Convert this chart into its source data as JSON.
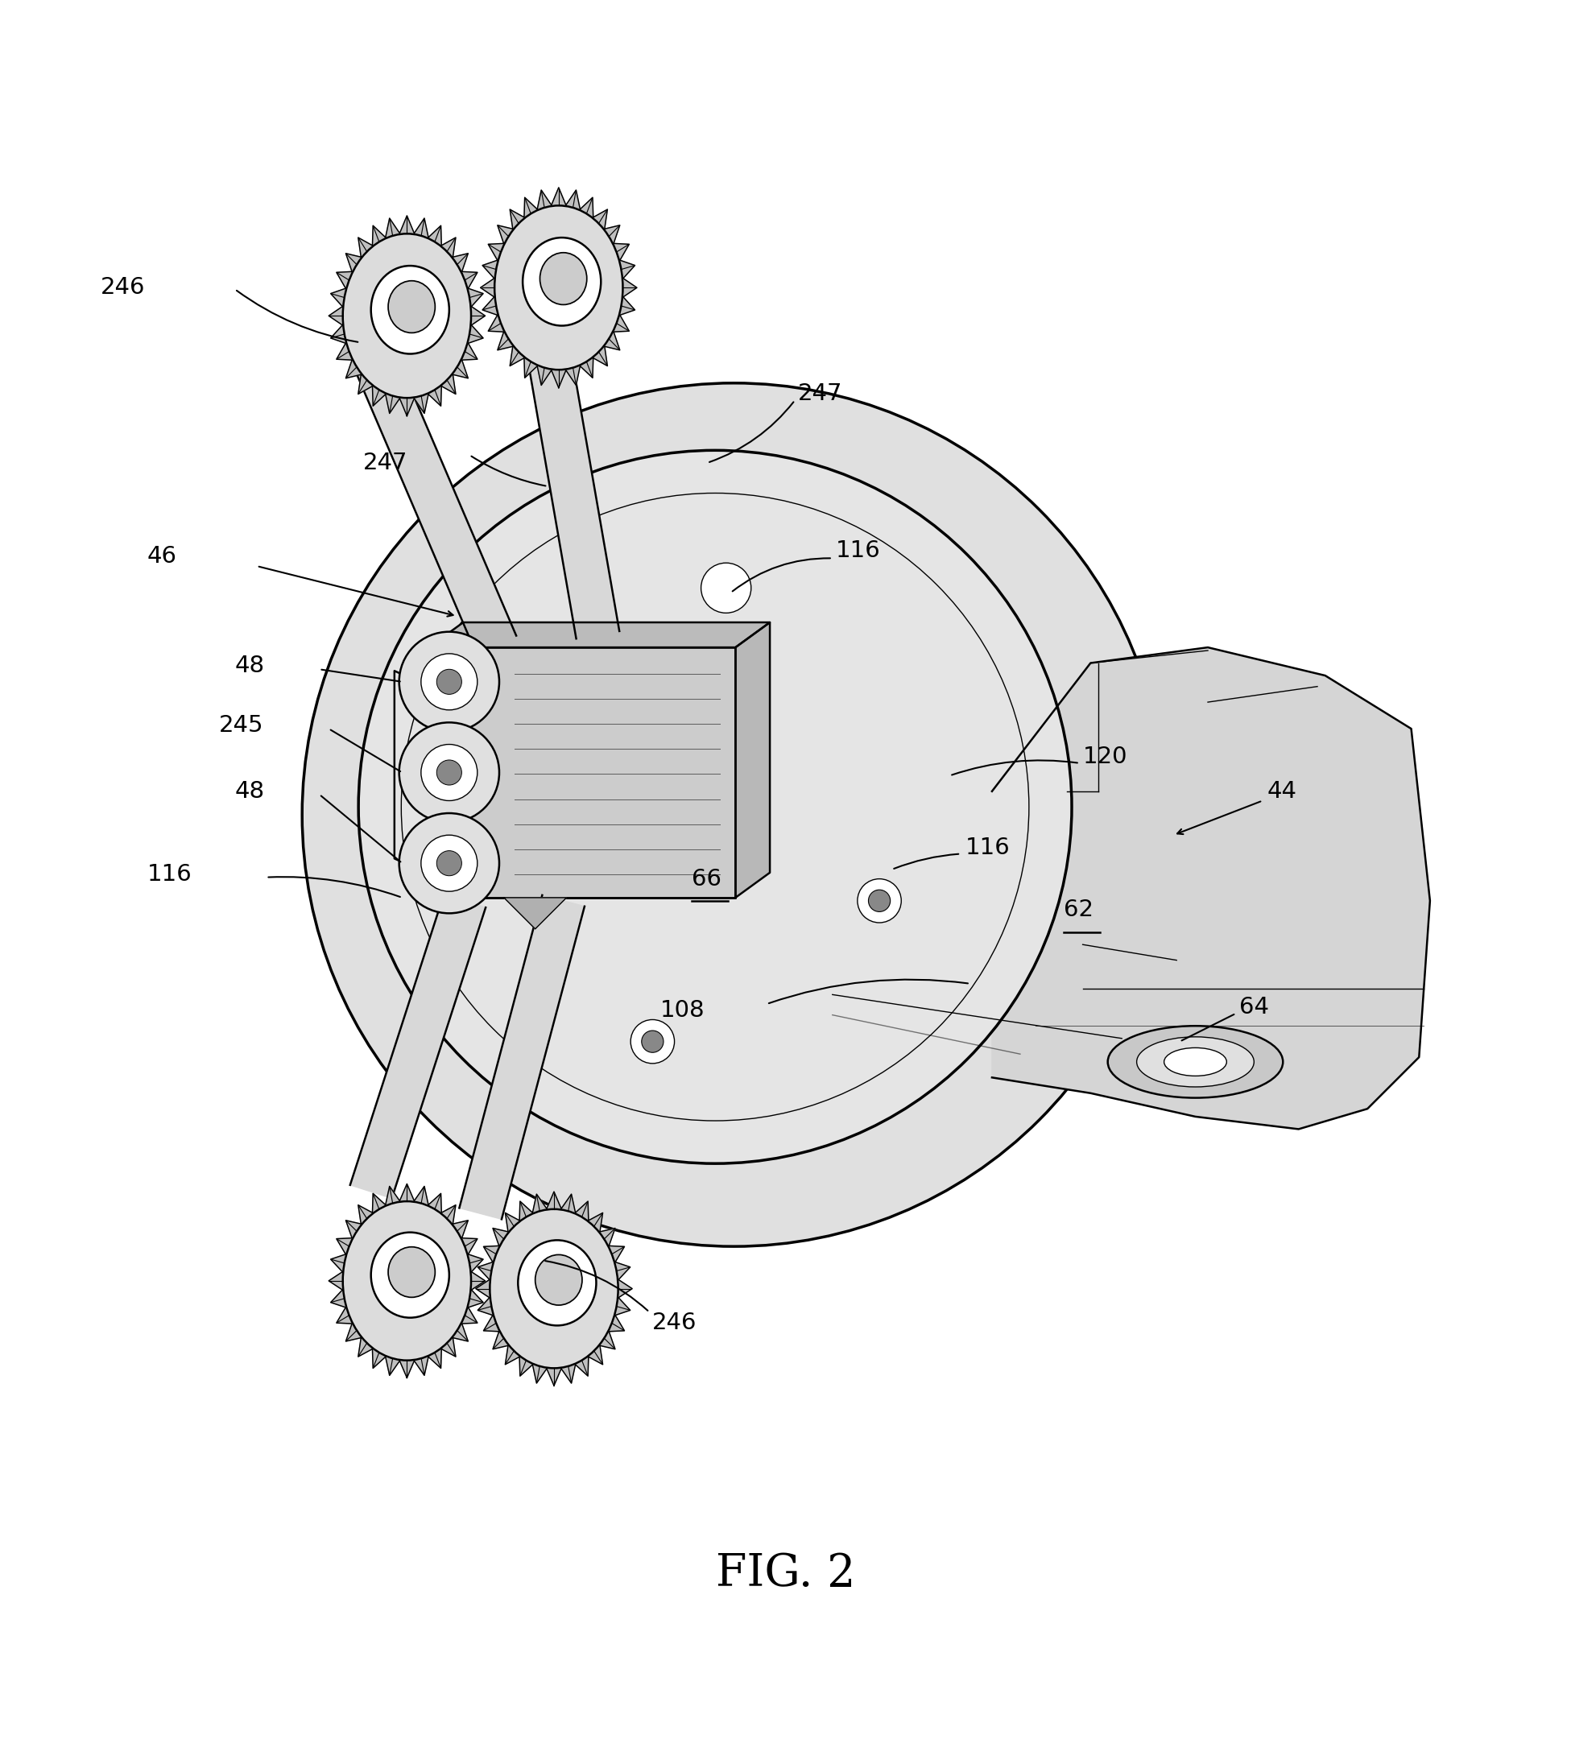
{
  "figure_label": "FIG. 2",
  "figure_label_fontsize": 40,
  "bg_color": "#ffffff",
  "line_color": "#000000",
  "gray_light": "#e8e8e8",
  "gray_mid": "#d0d0d0",
  "gray_dark": "#b0b0b0"
}
